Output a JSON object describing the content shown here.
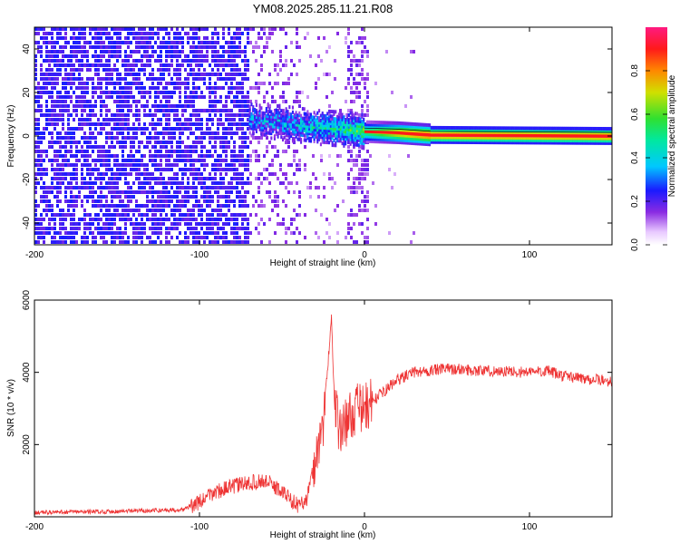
{
  "title": "YM08.2025.285.11.21.R08",
  "colors": {
    "snr_line": "#ee3333",
    "noise": "#7a2cf0",
    "frame": "#000000"
  },
  "chart_data": [
    {
      "type": "heatmap",
      "title": "YM08.2025.285.11.21.R08",
      "xlabel": "Height of straight line (km)",
      "ylabel": "Frequency (Hz)",
      "xlim": [
        -200,
        150
      ],
      "ylim": [
        -50,
        50
      ],
      "x_ticks": [
        -200,
        -100,
        0,
        100
      ],
      "y_ticks": [
        -40,
        -20,
        0,
        20,
        40
      ],
      "grid": false,
      "regions": [
        {
          "from_x": -200,
          "to_x": -70,
          "description_amplitude": 0.15
        },
        {
          "from_x": -70,
          "to_x": 0,
          "description_amplitude": 0.3
        },
        {
          "from_x": 0,
          "to_x": 40,
          "description_amplitude": 0.7
        },
        {
          "from_x": 40,
          "to_x": 150,
          "description_amplitude": 0.95
        }
      ],
      "ridge": [
        {
          "x": -70,
          "freq": 8,
          "amplitude": 0.3
        },
        {
          "x": -50,
          "freq": 6,
          "amplitude": 0.35
        },
        {
          "x": -30,
          "freq": 4,
          "amplitude": 0.4
        },
        {
          "x": -10,
          "freq": 3,
          "amplitude": 0.5
        },
        {
          "x": 0,
          "freq": 2,
          "amplitude": 0.6
        },
        {
          "x": 20,
          "freq": 1.5,
          "amplitude": 0.85
        },
        {
          "x": 40,
          "freq": 0.5,
          "amplitude": 0.95
        },
        {
          "x": 150,
          "freq": 0,
          "amplitude": 0.95
        }
      ],
      "colorbar": {
        "label": "Normalized spectral amplitude",
        "ticks": [
          0.0,
          0.2,
          0.4,
          0.6,
          0.8
        ],
        "range": [
          0,
          1
        ]
      }
    },
    {
      "type": "line",
      "xlabel": "Height of straight line (km)",
      "ylabel": "SNR (10 * v/v)",
      "xlim": [
        -200,
        150
      ],
      "ylim": [
        0,
        6000
      ],
      "x_ticks": [
        -200,
        -100,
        0,
        100
      ],
      "y_ticks": [
        2000,
        4000,
        6000
      ],
      "grid": false,
      "series": [
        {
          "x": [
            -200,
            -150,
            -110,
            -100,
            -90,
            -75,
            -60,
            -50,
            -40,
            -35,
            -30,
            -25,
            -20,
            -18,
            -15,
            -10,
            -5,
            0,
            10,
            20,
            30,
            40,
            50,
            70,
            100,
            110,
            120,
            150
          ],
          "y": [
            120,
            150,
            200,
            400,
            700,
            900,
            1000,
            700,
            300,
            500,
            1500,
            2600,
            5500,
            3000,
            2400,
            2700,
            3000,
            3000,
            3400,
            3800,
            4000,
            4050,
            4100,
            4050,
            4000,
            4050,
            3900,
            3750
          ]
        }
      ]
    }
  ]
}
